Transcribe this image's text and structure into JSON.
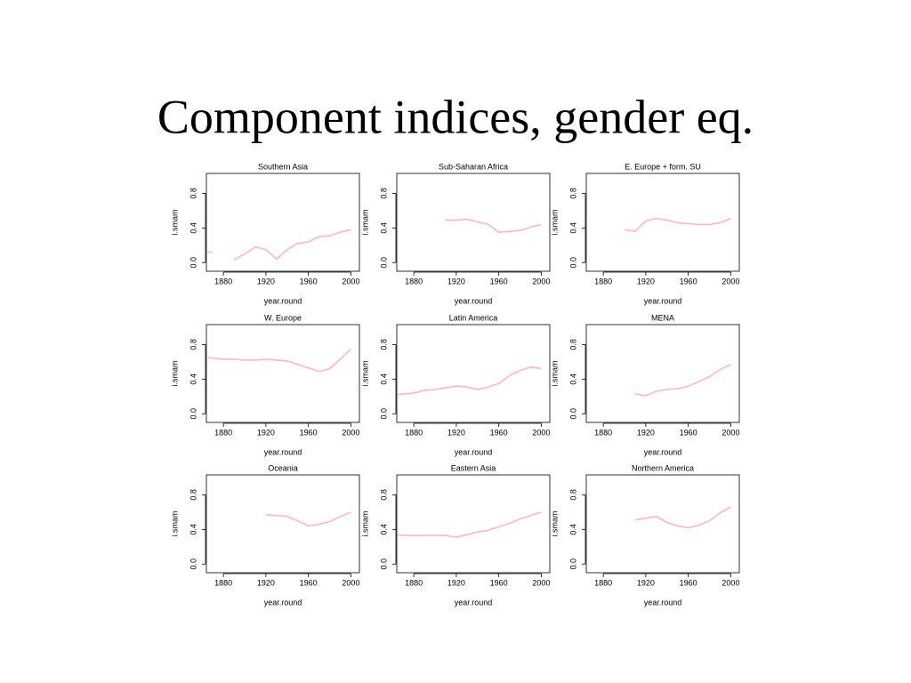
{
  "slide_title": "Component indices, gender eq.",
  "chart_data": [
    {
      "type": "line",
      "title": "Southern Asia",
      "xlabel": "year.round",
      "ylabel": "i.smam",
      "color": "#ffb6c1",
      "x": [
        1865,
        1870,
        1880,
        1890,
        1900,
        1910,
        1920,
        1930,
        1940,
        1950,
        1960,
        1970,
        1980,
        1990,
        2000
      ],
      "values": [
        0.12,
        0.12,
        null,
        0.03,
        0.1,
        0.18,
        0.15,
        0.04,
        0.15,
        0.22,
        0.24,
        0.3,
        0.31,
        0.35,
        0.38
      ],
      "xlim": [
        1864,
        2008
      ],
      "ylim": [
        -0.1,
        1.03
      ],
      "xticks": [
        1880,
        1920,
        1960,
        2000
      ],
      "yticks": [
        {
          "value": 0,
          "label": "0.0"
        },
        0.4,
        0.8
      ]
    },
    {
      "type": "line",
      "title": "Sub-Saharan Africa",
      "xlabel": "year.round",
      "ylabel": "i.smam",
      "color": "#ffb6c1",
      "x": [
        1910,
        1920,
        1930,
        1940,
        1950,
        1960,
        1970,
        1980,
        1990,
        2000
      ],
      "values": [
        0.49,
        0.49,
        0.5,
        0.47,
        0.44,
        0.35,
        0.36,
        0.37,
        0.41,
        0.44
      ],
      "xlim": [
        1864,
        2008
      ],
      "ylim": [
        -0.1,
        1.03
      ],
      "xticks": [
        1880,
        1920,
        1960,
        2000
      ],
      "yticks": [
        {
          "value": 0,
          "label": "0.0"
        },
        0.4,
        0.8
      ]
    },
    {
      "type": "line",
      "title": "E. Europe + form. SU",
      "xlabel": "year.round",
      "ylabel": "i.smam",
      "color": "#ffb6c1",
      "x": [
        1900,
        1910,
        1920,
        1930,
        1940,
        1950,
        1960,
        1970,
        1980,
        1990,
        2000
      ],
      "values": [
        0.38,
        0.36,
        0.48,
        0.51,
        0.49,
        0.46,
        0.45,
        0.44,
        0.44,
        0.46,
        0.51
      ],
      "xlim": [
        1864,
        2008
      ],
      "ylim": [
        -0.1,
        1.03
      ],
      "xticks": [
        1880,
        1920,
        1960,
        2000
      ],
      "yticks": [
        {
          "value": 0,
          "label": "0.0"
        },
        0.4,
        0.8
      ]
    },
    {
      "type": "line",
      "title": "W. Europe",
      "xlabel": "year.round",
      "ylabel": "i.smam",
      "color": "#ffb6c1",
      "x": [
        1865,
        1870,
        1880,
        1890,
        1900,
        1910,
        1920,
        1930,
        1940,
        1950,
        1960,
        1970,
        1980,
        1990,
        2000
      ],
      "values": [
        0.65,
        0.64,
        0.63,
        0.63,
        0.62,
        0.62,
        0.63,
        0.62,
        0.61,
        0.57,
        0.53,
        0.49,
        0.52,
        0.63,
        0.75
      ],
      "xlim": [
        1864,
        2008
      ],
      "ylim": [
        -0.1,
        1.03
      ],
      "xticks": [
        1880,
        1920,
        1960,
        2000
      ],
      "yticks": [
        {
          "value": 0,
          "label": "0.0"
        },
        0.4,
        0.8
      ]
    },
    {
      "type": "line",
      "title": "Latin America",
      "xlabel": "year.round",
      "ylabel": "i.smam",
      "color": "#ffb6c1",
      "x": [
        1865,
        1870,
        1880,
        1890,
        1900,
        1910,
        1920,
        1930,
        1940,
        1950,
        1960,
        1970,
        1980,
        1990,
        2000
      ],
      "values": [
        0.22,
        0.23,
        0.24,
        0.27,
        0.28,
        0.3,
        0.32,
        0.31,
        0.28,
        0.31,
        0.35,
        0.44,
        0.5,
        0.54,
        0.52
      ],
      "xlim": [
        1864,
        2008
      ],
      "ylim": [
        -0.1,
        1.03
      ],
      "xticks": [
        1880,
        1920,
        1960,
        2000
      ],
      "yticks": [
        {
          "value": 0,
          "label": "0.0"
        },
        0.4,
        0.8
      ]
    },
    {
      "type": "line",
      "title": "MENA",
      "xlabel": "year.round",
      "ylabel": "i.smam",
      "color": "#ffb6c1",
      "x": [
        1910,
        1920,
        1930,
        1940,
        1950,
        1960,
        1970,
        1980,
        1990,
        2000
      ],
      "values": [
        0.23,
        0.21,
        0.26,
        0.28,
        0.29,
        0.32,
        0.37,
        0.43,
        0.51,
        0.57
      ],
      "xlim": [
        1864,
        2008
      ],
      "ylim": [
        -0.1,
        1.03
      ],
      "xticks": [
        1880,
        1920,
        1960,
        2000
      ],
      "yticks": [
        {
          "value": 0,
          "label": "0.0"
        },
        0.4,
        0.8
      ]
    },
    {
      "type": "line",
      "title": "Oceania",
      "xlabel": "year.round",
      "ylabel": "i.smam",
      "color": "#ffb6c1",
      "x": [
        1920,
        1930,
        1940,
        1950,
        1960,
        1970,
        1980,
        1990,
        2000
      ],
      "values": [
        0.57,
        0.56,
        0.55,
        0.5,
        0.44,
        0.46,
        0.49,
        0.55,
        0.6
      ],
      "xlim": [
        1864,
        2008
      ],
      "ylim": [
        -0.1,
        1.03
      ],
      "xticks": [
        1880,
        1920,
        1960,
        2000
      ],
      "yticks": [
        {
          "value": 0,
          "label": "0.0"
        },
        0.4,
        0.8
      ]
    },
    {
      "type": "line",
      "title": "Eastern Asia",
      "xlabel": "year.round",
      "ylabel": "i.smam",
      "color": "#ffb6c1",
      "x": [
        1865,
        1870,
        1880,
        1890,
        1900,
        1910,
        1920,
        1930,
        1940,
        1950,
        1960,
        1970,
        1980,
        1990,
        2000
      ],
      "values": [
        0.34,
        0.33,
        0.33,
        0.33,
        0.33,
        0.33,
        0.31,
        0.34,
        0.37,
        0.39,
        0.43,
        0.47,
        0.52,
        0.56,
        0.6
      ],
      "xlim": [
        1864,
        2008
      ],
      "ylim": [
        -0.1,
        1.03
      ],
      "xticks": [
        1880,
        1920,
        1960,
        2000
      ],
      "yticks": [
        {
          "value": 0,
          "label": "0.0"
        },
        0.4,
        0.8
      ]
    },
    {
      "type": "line",
      "title": "Northern America",
      "xlabel": "year.round",
      "ylabel": "i.smam",
      "color": "#ffb6c1",
      "x": [
        1910,
        1920,
        1930,
        1940,
        1950,
        1960,
        1970,
        1980,
        1990,
        2000
      ],
      "values": [
        0.51,
        0.53,
        0.55,
        0.48,
        0.44,
        0.42,
        0.45,
        0.5,
        0.59,
        0.66
      ],
      "xlim": [
        1864,
        2008
      ],
      "ylim": [
        -0.1,
        1.03
      ],
      "xticks": [
        1880,
        1920,
        1960,
        2000
      ],
      "yticks": [
        {
          "value": 0,
          "label": "0.0"
        },
        0.4,
        0.8
      ]
    }
  ]
}
